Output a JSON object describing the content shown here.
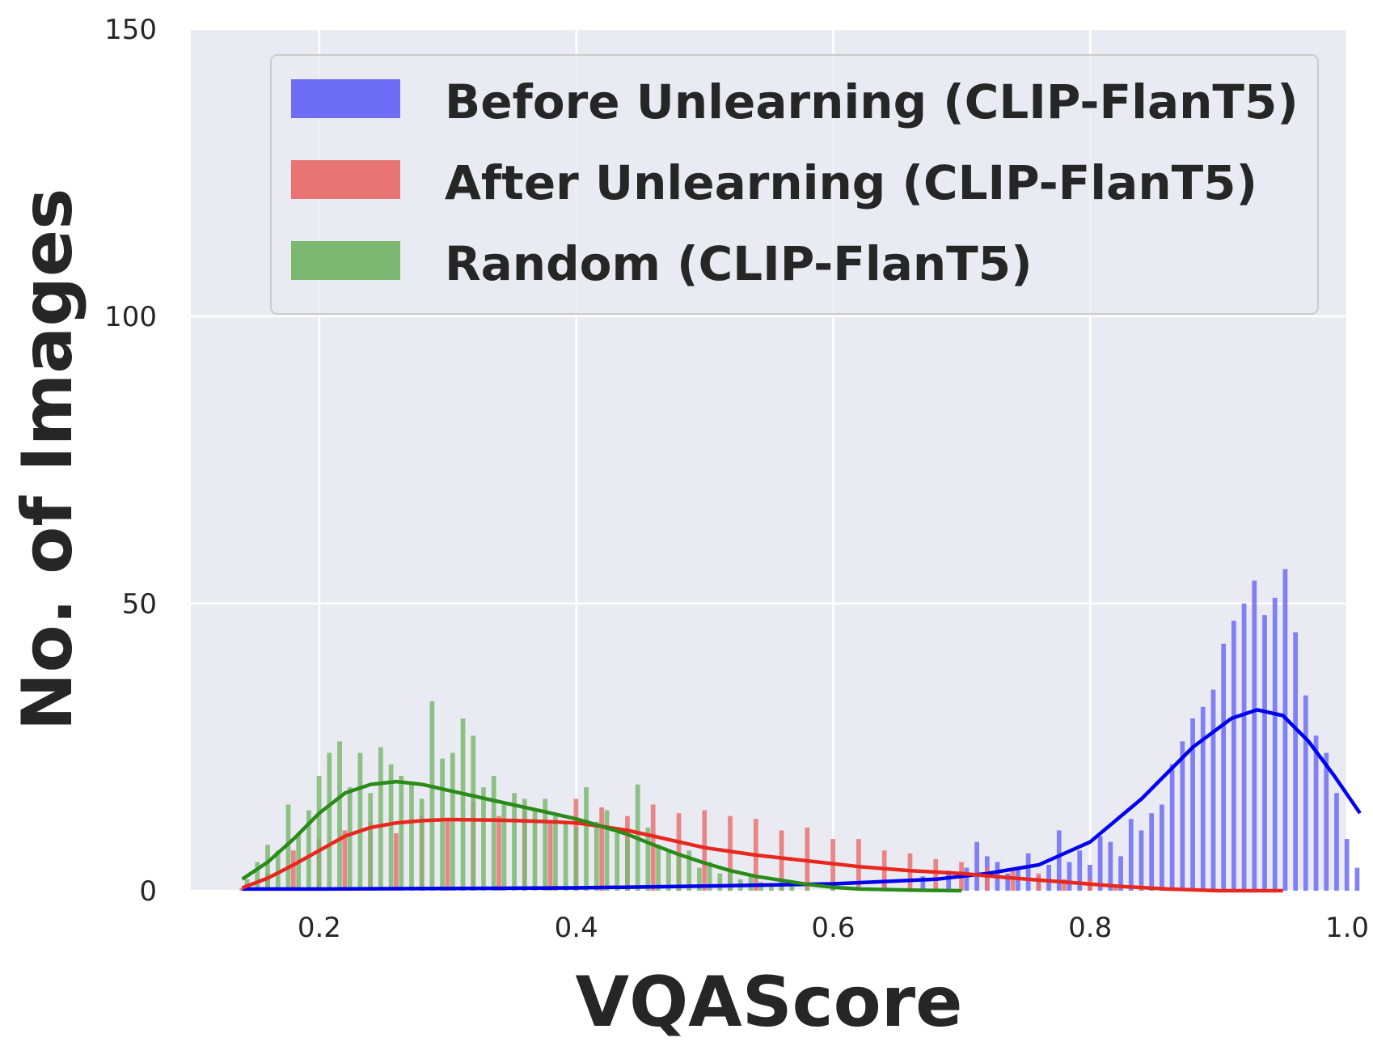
{
  "chart_data": {
    "type": "histogram",
    "title": "",
    "xlabel": "VQAScore",
    "ylabel": "No. of Images",
    "xlim": [
      0.1,
      1.0
    ],
    "ylim": [
      0,
      150
    ],
    "x_ticks": [
      0.2,
      0.4,
      0.6,
      0.8,
      1.0
    ],
    "x_tick_labels": [
      "0.2",
      "0.4",
      "0.6",
      "0.8",
      "1.0"
    ],
    "y_ticks": [
      0,
      50,
      100,
      150
    ],
    "y_tick_labels": [
      "0",
      "50",
      "100",
      "150"
    ],
    "grid": true,
    "background": "#eaeaf2",
    "legend_position": "top-right",
    "bin_width": 0.004,
    "series": [
      {
        "name": "Before Unlearning (CLIP-FlanT5)",
        "color": "#0000ee",
        "bar_color": "#6d6df5",
        "bins": [
          [
            0.2,
            0.3
          ],
          [
            0.24,
            0.5
          ],
          [
            0.28,
            0.6
          ],
          [
            0.32,
            0.7
          ],
          [
            0.36,
            0.8
          ],
          [
            0.4,
            1.0
          ],
          [
            0.44,
            1.0
          ],
          [
            0.48,
            1.2
          ],
          [
            0.52,
            1.2
          ],
          [
            0.56,
            1.4
          ],
          [
            0.6,
            1.5
          ],
          [
            0.64,
            1.8
          ],
          [
            0.67,
            2.5
          ],
          [
            0.69,
            3.5
          ],
          [
            0.704,
            4.0
          ],
          [
            0.712,
            8.5
          ],
          [
            0.72,
            6.0
          ],
          [
            0.728,
            5.0
          ],
          [
            0.736,
            3.0
          ],
          [
            0.744,
            4.0
          ],
          [
            0.752,
            6.5
          ],
          [
            0.76,
            2.5
          ],
          [
            0.768,
            4.5
          ],
          [
            0.776,
            10.5
          ],
          [
            0.784,
            5.0
          ],
          [
            0.792,
            7.0
          ],
          [
            0.8,
            4.5
          ],
          [
            0.808,
            9.5
          ],
          [
            0.816,
            8.5
          ],
          [
            0.824,
            6.0
          ],
          [
            0.832,
            12.5
          ],
          [
            0.84,
            10.5
          ],
          [
            0.848,
            13.5
          ],
          [
            0.856,
            15.0
          ],
          [
            0.864,
            22.0
          ],
          [
            0.872,
            26.0
          ],
          [
            0.88,
            30.0
          ],
          [
            0.888,
            32.0
          ],
          [
            0.896,
            35.0
          ],
          [
            0.904,
            43.0
          ],
          [
            0.912,
            47.0
          ],
          [
            0.92,
            50.0
          ],
          [
            0.928,
            54.0
          ],
          [
            0.936,
            48.0
          ],
          [
            0.944,
            51.0
          ],
          [
            0.952,
            56.0
          ],
          [
            0.96,
            45.0
          ],
          [
            0.968,
            34.0
          ],
          [
            0.976,
            27.0
          ],
          [
            0.984,
            24.0
          ],
          [
            0.992,
            17.0
          ],
          [
            1.0,
            9.0
          ],
          [
            1.008,
            4.0
          ]
        ],
        "kde": [
          [
            0.14,
            0.3
          ],
          [
            0.2,
            0.3
          ],
          [
            0.3,
            0.4
          ],
          [
            0.4,
            0.5
          ],
          [
            0.5,
            0.8
          ],
          [
            0.6,
            1.2
          ],
          [
            0.68,
            2.0
          ],
          [
            0.72,
            3.0
          ],
          [
            0.76,
            4.5
          ],
          [
            0.8,
            8.5
          ],
          [
            0.84,
            16.0
          ],
          [
            0.88,
            25.0
          ],
          [
            0.91,
            30.0
          ],
          [
            0.93,
            31.5
          ],
          [
            0.95,
            30.5
          ],
          [
            0.97,
            26.0
          ],
          [
            0.99,
            20.0
          ],
          [
            1.01,
            13.5
          ]
        ]
      },
      {
        "name": "After Unlearning (CLIP-FlanT5)",
        "color": "#e8281e",
        "bar_color": "#e87474",
        "bins": [
          [
            0.14,
            0.5
          ],
          [
            0.16,
            3.0
          ],
          [
            0.18,
            7.0
          ],
          [
            0.2,
            9.0
          ],
          [
            0.22,
            10.5
          ],
          [
            0.24,
            12.0
          ],
          [
            0.26,
            10.0
          ],
          [
            0.28,
            13.0
          ],
          [
            0.3,
            12.5
          ],
          [
            0.32,
            15.5
          ],
          [
            0.34,
            13.0
          ],
          [
            0.36,
            14.0
          ],
          [
            0.38,
            12.0
          ],
          [
            0.4,
            16.0
          ],
          [
            0.42,
            14.5
          ],
          [
            0.44,
            13.0
          ],
          [
            0.46,
            15.0
          ],
          [
            0.48,
            13.5
          ],
          [
            0.5,
            14.0
          ],
          [
            0.52,
            13.0
          ],
          [
            0.54,
            12.5
          ],
          [
            0.56,
            10.5
          ],
          [
            0.58,
            11.0
          ],
          [
            0.6,
            9.0
          ],
          [
            0.62,
            9.0
          ],
          [
            0.64,
            7.0
          ],
          [
            0.66,
            6.5
          ],
          [
            0.68,
            5.5
          ],
          [
            0.7,
            5.0
          ],
          [
            0.72,
            4.0
          ],
          [
            0.74,
            3.5
          ],
          [
            0.76,
            3.0
          ],
          [
            0.78,
            2.0
          ],
          [
            0.8,
            2.0
          ],
          [
            0.82,
            1.0
          ],
          [
            0.84,
            1.0
          ],
          [
            0.86,
            0.5
          ]
        ],
        "kde": [
          [
            0.14,
            0.5
          ],
          [
            0.16,
            2.2
          ],
          [
            0.18,
            4.5
          ],
          [
            0.2,
            7.0
          ],
          [
            0.22,
            9.5
          ],
          [
            0.24,
            11.0
          ],
          [
            0.26,
            11.8
          ],
          [
            0.28,
            12.2
          ],
          [
            0.3,
            12.4
          ],
          [
            0.34,
            12.3
          ],
          [
            0.38,
            12.0
          ],
          [
            0.4,
            11.8
          ],
          [
            0.42,
            11.2
          ],
          [
            0.44,
            10.5
          ],
          [
            0.46,
            9.5
          ],
          [
            0.48,
            8.5
          ],
          [
            0.5,
            7.5
          ],
          [
            0.54,
            6.2
          ],
          [
            0.58,
            5.2
          ],
          [
            0.62,
            4.2
          ],
          [
            0.66,
            3.5
          ],
          [
            0.7,
            3.0
          ],
          [
            0.74,
            2.2
          ],
          [
            0.78,
            1.5
          ],
          [
            0.82,
            0.8
          ],
          [
            0.86,
            0.3
          ],
          [
            0.9,
            0.0
          ],
          [
            0.95,
            0.0
          ]
        ]
      },
      {
        "name": "Random (CLIP-FlanT5)",
        "color": "#2a8a1a",
        "bar_color": "#7cb872",
        "bins": [
          [
            0.144,
            2.0
          ],
          [
            0.152,
            5.0
          ],
          [
            0.16,
            8.0
          ],
          [
            0.168,
            7.0
          ],
          [
            0.176,
            15.0
          ],
          [
            0.184,
            10.0
          ],
          [
            0.192,
            14.0
          ],
          [
            0.2,
            20.0
          ],
          [
            0.208,
            24.0
          ],
          [
            0.216,
            26.0
          ],
          [
            0.224,
            18.0
          ],
          [
            0.232,
            24.0
          ],
          [
            0.24,
            17.0
          ],
          [
            0.248,
            25.0
          ],
          [
            0.256,
            22.0
          ],
          [
            0.264,
            20.0
          ],
          [
            0.272,
            19.0
          ],
          [
            0.28,
            16.0
          ],
          [
            0.288,
            33.0
          ],
          [
            0.296,
            23.0
          ],
          [
            0.304,
            24.0
          ],
          [
            0.312,
            30.0
          ],
          [
            0.32,
            27.0
          ],
          [
            0.328,
            18.0
          ],
          [
            0.336,
            20.0
          ],
          [
            0.344,
            15.0
          ],
          [
            0.352,
            17.0
          ],
          [
            0.36,
            16.0
          ],
          [
            0.368,
            14.0
          ],
          [
            0.376,
            16.0
          ],
          [
            0.384,
            13.0
          ],
          [
            0.392,
            12.0
          ],
          [
            0.4,
            11.0
          ],
          [
            0.408,
            18.0
          ],
          [
            0.416,
            12.0
          ],
          [
            0.424,
            14.0
          ],
          [
            0.432,
            10.0
          ],
          [
            0.44,
            9.0
          ],
          [
            0.448,
            18.5
          ],
          [
            0.456,
            11.0
          ],
          [
            0.464,
            8.0
          ],
          [
            0.472,
            7.0
          ],
          [
            0.48,
            6.0
          ],
          [
            0.488,
            7.0
          ],
          [
            0.496,
            4.0
          ],
          [
            0.504,
            5.0
          ],
          [
            0.512,
            3.0
          ],
          [
            0.52,
            3.5
          ],
          [
            0.528,
            2.0
          ],
          [
            0.536,
            2.5
          ],
          [
            0.544,
            1.5
          ],
          [
            0.552,
            1.0
          ],
          [
            0.56,
            1.5
          ],
          [
            0.568,
            1.0
          ],
          [
            0.58,
            0.5
          ],
          [
            0.6,
            0.5
          ]
        ],
        "kde": [
          [
            0.14,
            2.0
          ],
          [
            0.16,
            5.0
          ],
          [
            0.18,
            9.0
          ],
          [
            0.2,
            13.5
          ],
          [
            0.22,
            17.0
          ],
          [
            0.24,
            18.5
          ],
          [
            0.26,
            19.0
          ],
          [
            0.28,
            18.5
          ],
          [
            0.3,
            17.5
          ],
          [
            0.32,
            16.5
          ],
          [
            0.34,
            15.5
          ],
          [
            0.36,
            14.5
          ],
          [
            0.38,
            13.5
          ],
          [
            0.4,
            12.5
          ],
          [
            0.42,
            11.2
          ],
          [
            0.44,
            9.8
          ],
          [
            0.46,
            8.0
          ],
          [
            0.48,
            6.3
          ],
          [
            0.5,
            4.8
          ],
          [
            0.52,
            3.5
          ],
          [
            0.54,
            2.5
          ],
          [
            0.56,
            1.8
          ],
          [
            0.58,
            1.1
          ],
          [
            0.6,
            0.6
          ],
          [
            0.62,
            0.3
          ],
          [
            0.66,
            0.1
          ],
          [
            0.7,
            0.0
          ]
        ]
      }
    ]
  }
}
